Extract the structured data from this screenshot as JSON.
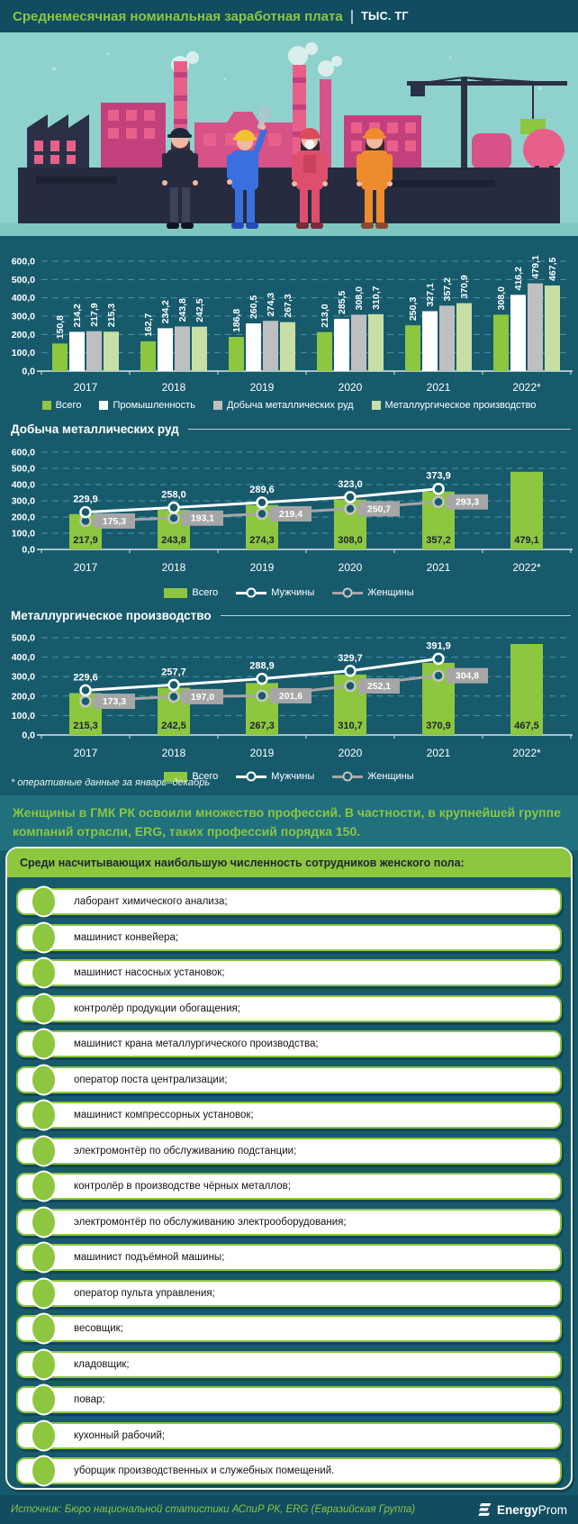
{
  "header": {
    "title": "Среднемесячная номинальная заработная плата",
    "separator": "|",
    "unit": "тыс. тг"
  },
  "colors": {
    "background": "#175a6c",
    "bar_background": "#114d61",
    "accent_green": "#8dc63f",
    "light_green": "#c7dfa4",
    "gray": "#bfbfbf",
    "white": "#ffffff",
    "grid": "#4a93a8",
    "callout_bg": "#20707e"
  },
  "chart_data": [
    {
      "type": "bar",
      "title": "",
      "categories": [
        "2017",
        "2018",
        "2019",
        "2020",
        "2021",
        "2022*"
      ],
      "series": [
        {
          "name": "Всего",
          "color": "#8dc63f",
          "values": [
            150.8,
            162.7,
            186.8,
            213.0,
            250.3,
            308.0
          ]
        },
        {
          "name": "Промышленность",
          "color": "#ffffff",
          "values": [
            214.2,
            234.2,
            260.5,
            285.5,
            327.1,
            416.2
          ]
        },
        {
          "name": "Добыча металлических руд",
          "color": "#bfbfbf",
          "values": [
            217.9,
            243.8,
            274.3,
            308.0,
            357.2,
            479.1
          ]
        },
        {
          "name": "Металлургическое производство",
          "color": "#c7dfa4",
          "values": [
            215.3,
            242.5,
            267.3,
            310.7,
            370.9,
            467.5
          ]
        }
      ],
      "ylim": [
        0,
        600
      ],
      "ytick_step": 100,
      "grid": true,
      "legend_position": "bottom"
    },
    {
      "type": "bar+line",
      "title": "Добыча металлических руд",
      "categories": [
        "2017",
        "2018",
        "2019",
        "2020",
        "2021",
        "2022*"
      ],
      "series": [
        {
          "name": "Всего",
          "kind": "bar",
          "color": "#8dc63f",
          "values": [
            217.9,
            243.8,
            274.3,
            308.0,
            357.2,
            479.1
          ]
        },
        {
          "name": "Мужчины",
          "kind": "line",
          "color": "#ffffff",
          "values": [
            229.9,
            258.0,
            289.6,
            323.0,
            373.9,
            null
          ]
        },
        {
          "name": "Женщины",
          "kind": "line",
          "color": "#a6a6a6",
          "values": [
            175.3,
            193.1,
            219.4,
            250.7,
            293.3,
            null
          ]
        }
      ],
      "ylim": [
        0,
        600
      ],
      "ytick_step": 100,
      "grid": true,
      "legend_position": "bottom"
    },
    {
      "type": "bar+line",
      "title": "Металлургическое производство",
      "categories": [
        "2017",
        "2018",
        "2019",
        "2020",
        "2021",
        "2022*"
      ],
      "series": [
        {
          "name": "Всего",
          "kind": "bar",
          "color": "#8dc63f",
          "values": [
            215.3,
            242.5,
            267.3,
            310.7,
            370.9,
            467.5
          ]
        },
        {
          "name": "Мужчины",
          "kind": "line",
          "color": "#ffffff",
          "values": [
            229.6,
            257.7,
            288.9,
            329.7,
            391.9,
            null
          ]
        },
        {
          "name": "Женщины",
          "kind": "line",
          "color": "#a6a6a6",
          "values": [
            173.3,
            197.0,
            201.6,
            252.1,
            304.8,
            null
          ]
        }
      ],
      "ylim": [
        0,
        500
      ],
      "ytick_step": 100,
      "grid": true,
      "legend_position": "bottom"
    }
  ],
  "footnote": "* оперативные данные за январь–декабрь",
  "callout": "Женщины в ГМК РК освоили множество профессий. В частности, в крупнейшей группе компаний отрасли, ERG, таких профессий порядка 150.",
  "professions": {
    "header": "Среди насчитывающих наибольшую численность сотрудников женского пола:",
    "items": [
      "лаборант химического анализа;",
      "машинист конвейера;",
      "машинист насосных установок;",
      "контролёр продукции обогащения;",
      "машинист крана металлургического производства;",
      "оператор поста централизации;",
      "машинист компрессорных установок;",
      "электромонтёр по обслуживанию подстанции;",
      "контролёр в производстве чёрных металлов;",
      "электромонтёр по обслуживанию электрооборудования;",
      "машинист подъёмной машины;",
      "оператор пульта управления;",
      "весовщик;",
      "кладовщик;",
      "повар;",
      "кухонный рабочий;",
      "уборщик производственных и служебных помещений."
    ]
  },
  "footer": {
    "source": "Источник: Бюро национальной статистики АСпиР РК, ERG (Евразийская Группа)",
    "logo_bold": "Energy",
    "logo_light": "Prom"
  }
}
